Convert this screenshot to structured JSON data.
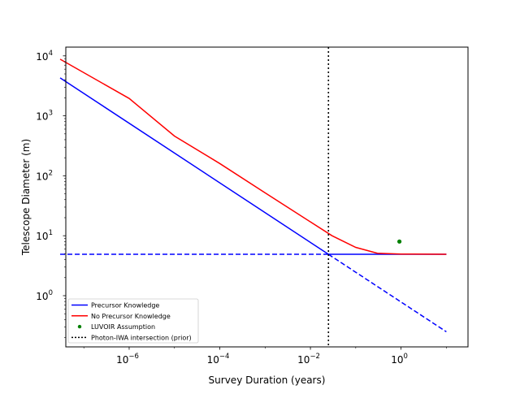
{
  "chart_data": {
    "type": "line",
    "title": "",
    "xlabel": "Survey Duration (years)",
    "ylabel": "Telescope Diameter (m)",
    "xscale": "log",
    "yscale": "log",
    "xlim": [
      4e-08,
      30
    ],
    "ylim": [
      0.14,
      14000
    ],
    "xticks": [
      {
        "value": 1e-06,
        "base": "10",
        "exp": "−6"
      },
      {
        "value": 0.0001,
        "base": "10",
        "exp": "−4"
      },
      {
        "value": 0.01,
        "base": "10",
        "exp": "−2"
      },
      {
        "value": 1,
        "base": "10",
        "exp": "0"
      }
    ],
    "yticks": [
      {
        "value": 1,
        "base": "10",
        "exp": "0"
      },
      {
        "value": 10,
        "base": "10",
        "exp": "1"
      },
      {
        "value": 100,
        "base": "10",
        "exp": "2"
      },
      {
        "value": 1000,
        "base": "10",
        "exp": "3"
      },
      {
        "value": 10000,
        "base": "10",
        "exp": "4"
      }
    ],
    "grid": false,
    "legend_position": "lower-left",
    "series": [
      {
        "name": "Precursor Knowledge",
        "color": "#0000ff",
        "style": "solid",
        "points": [
          [
            3e-08,
            4300
          ],
          [
            0.025,
            4.9
          ],
          [
            10,
            4.9
          ]
        ]
      },
      {
        "name": "No Precursor Knowledge",
        "color": "#ff0000",
        "style": "solid",
        "points": [
          [
            3e-08,
            8800
          ],
          [
            1e-06,
            1950
          ],
          [
            1e-05,
            460
          ],
          [
            0.0001,
            160
          ],
          [
            0.001,
            52
          ],
          [
            0.01,
            17
          ],
          [
            0.03,
            10
          ],
          [
            0.1,
            6.4
          ],
          [
            0.3,
            5.1
          ],
          [
            1,
            4.95
          ],
          [
            10,
            4.9
          ]
        ]
      },
      {
        "name": "",
        "color": "#0000ff",
        "style": "dashed",
        "points": [
          [
            3e-08,
            4.9
          ],
          [
            0.025,
            4.9
          ]
        ]
      },
      {
        "name": "",
        "color": "#0000ff",
        "style": "dashed",
        "points": [
          [
            0.025,
            4.9
          ],
          [
            10,
            0.25
          ]
        ]
      },
      {
        "name": "LUVOIR Assumption",
        "color": "#008000",
        "style": "marker",
        "points": [
          [
            0.92,
            8.0
          ]
        ]
      },
      {
        "name": "Photon-IWA intersection (prior)",
        "color": "#000000",
        "style": "vline-dotted",
        "x": 0.025
      }
    ],
    "legend": [
      {
        "label": "Precursor Knowledge",
        "color": "#0000ff",
        "kind": "line"
      },
      {
        "label": "No Precursor Knowledge",
        "color": "#ff0000",
        "kind": "line"
      },
      {
        "label": "LUVOIR Assumption",
        "color": "#008000",
        "kind": "marker"
      },
      {
        "label": "Photon-IWA intersection (prior)",
        "color": "#000000",
        "kind": "dotted"
      }
    ]
  }
}
